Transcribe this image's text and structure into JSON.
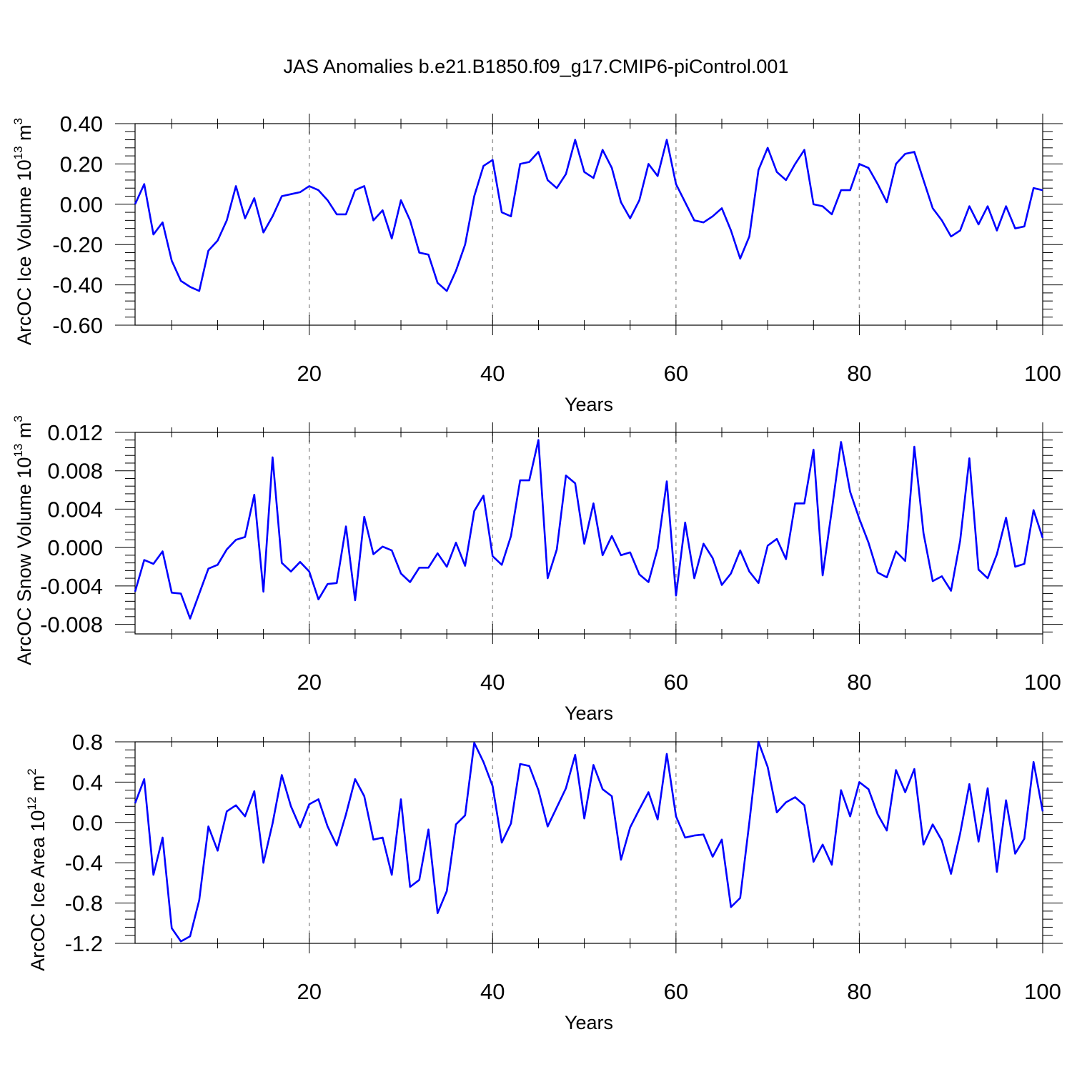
{
  "title": "JAS Anomalies b.e21.B1850.f09_g17.CMIP6-piControl.001",
  "line_color": "#0000ff",
  "chart_data": [
    {
      "type": "line",
      "ylabel": "ArcOC Ice Volume",
      "ylabel_unit": {
        "base": "10",
        "exp": "13",
        "unit": "m",
        "unit_exp": "3"
      },
      "xlabel": "Years",
      "xlim": [
        1,
        100
      ],
      "ylim": [
        -0.6,
        0.4
      ],
      "yticks": [
        -0.6,
        -0.4,
        -0.2,
        0.0,
        0.2,
        0.4
      ],
      "ytick_labels": [
        "-0.60",
        "-0.40",
        "-0.20",
        "0.00",
        "0.20",
        "0.40"
      ],
      "xticks": [
        20,
        40,
        60,
        80,
        100
      ],
      "xtick_labels": [
        "20",
        "40",
        "60",
        "80",
        "100"
      ],
      "x_start": 1,
      "values": [
        0.0,
        0.1,
        -0.15,
        -0.09,
        -0.28,
        -0.38,
        -0.41,
        -0.43,
        -0.23,
        -0.18,
        -0.08,
        0.09,
        -0.07,
        0.03,
        -0.14,
        -0.06,
        0.04,
        0.05,
        0.06,
        0.09,
        0.07,
        0.02,
        -0.05,
        -0.05,
        0.07,
        0.09,
        -0.08,
        -0.03,
        -0.17,
        0.02,
        -0.08,
        -0.24,
        -0.25,
        -0.39,
        -0.43,
        -0.33,
        -0.2,
        0.04,
        0.19,
        0.22,
        -0.04,
        -0.06,
        0.2,
        0.21,
        0.26,
        0.12,
        0.08,
        0.15,
        0.32,
        0.16,
        0.13,
        0.27,
        0.18,
        0.01,
        -0.07,
        0.02,
        0.2,
        0.14,
        0.32,
        0.1,
        0.01,
        -0.08,
        -0.09,
        -0.06,
        -0.02,
        -0.13,
        -0.27,
        -0.16,
        0.17,
        0.28,
        0.16,
        0.12,
        0.2,
        0.27,
        0.0,
        -0.01,
        -0.05,
        0.07,
        0.07,
        0.2,
        0.18,
        0.1,
        0.01,
        0.2,
        0.25,
        0.26,
        0.12,
        -0.02,
        -0.08,
        -0.16,
        -0.13,
        -0.01,
        -0.1,
        -0.01,
        -0.13,
        -0.01,
        -0.12,
        -0.11,
        0.08,
        0.07
      ]
    },
    {
      "type": "line",
      "ylabel": "ArcOC Snow Volume",
      "ylabel_unit": {
        "base": "10",
        "exp": "13",
        "unit": "m",
        "unit_exp": "3"
      },
      "xlabel": "Years",
      "xlim": [
        1,
        100
      ],
      "ylim": [
        -0.009,
        0.012
      ],
      "yticks": [
        -0.008,
        -0.004,
        0.0,
        0.004,
        0.008,
        0.012
      ],
      "ytick_labels": [
        "-0.008",
        "-0.004",
        "0.000",
        "0.004",
        "0.008",
        "0.012"
      ],
      "xticks": [
        20,
        40,
        60,
        80,
        100
      ],
      "xtick_labels": [
        "20",
        "40",
        "60",
        "80",
        "100"
      ],
      "x_start": 1,
      "values": [
        -0.0046,
        -0.0013,
        -0.0017,
        -0.0004,
        -0.0047,
        -0.0048,
        -0.0074,
        -0.0048,
        -0.0022,
        -0.0018,
        -0.0002,
        0.0008,
        0.0011,
        0.0055,
        -0.0046,
        0.0094,
        -0.0016,
        -0.0025,
        -0.0015,
        -0.0025,
        -0.0054,
        -0.0038,
        -0.0037,
        0.0022,
        -0.0055,
        0.0032,
        -0.0007,
        0.0001,
        -0.0003,
        -0.0027,
        -0.0036,
        -0.0021,
        -0.0021,
        -0.0006,
        -0.002,
        0.0005,
        -0.0019,
        0.0038,
        0.0054,
        -0.0009,
        -0.0018,
        0.0012,
        0.007,
        0.007,
        0.0112,
        -0.0032,
        -0.0002,
        0.0075,
        0.0067,
        0.0004,
        0.0046,
        -0.0008,
        0.0012,
        -0.0008,
        -0.0005,
        -0.0028,
        -0.0036,
        -0.0001,
        0.0069,
        -0.005,
        0.0026,
        -0.0032,
        0.0004,
        -0.0011,
        -0.0039,
        -0.0027,
        -0.0003,
        -0.0025,
        -0.0037,
        0.0002,
        0.0009,
        -0.0012,
        0.0046,
        0.0046,
        0.0102,
        -0.0029,
        0.0039,
        0.011,
        0.0058,
        0.003,
        0.0005,
        -0.0026,
        -0.0031,
        -0.0004,
        -0.0014,
        0.0105,
        0.0015,
        -0.0035,
        -0.003,
        -0.0045,
        0.0007,
        0.0093,
        -0.0023,
        -0.0032,
        -0.0007,
        0.0031,
        -0.002,
        -0.0017,
        0.0039,
        0.001
      ]
    },
    {
      "type": "line",
      "ylabel": "ArcOC Ice Area",
      "ylabel_unit": {
        "base": "10",
        "exp": "12",
        "unit": "m",
        "unit_exp": "2"
      },
      "xlabel": "Years",
      "xlim": [
        1,
        100
      ],
      "ylim": [
        -1.2,
        0.8
      ],
      "yticks": [
        -1.2,
        -0.8,
        -0.4,
        0.0,
        0.4,
        0.8
      ],
      "ytick_labels": [
        "-1.2",
        "-0.8",
        "-0.4",
        "0.0",
        "0.4",
        "0.8"
      ],
      "xticks": [
        20,
        40,
        60,
        80,
        100
      ],
      "xtick_labels": [
        "20",
        "40",
        "60",
        "80",
        "100"
      ],
      "x_start": 1,
      "values": [
        0.19,
        0.43,
        -0.52,
        -0.15,
        -1.05,
        -1.18,
        -1.13,
        -0.77,
        -0.04,
        -0.28,
        0.11,
        0.17,
        0.06,
        0.31,
        -0.4,
        -0.01,
        0.47,
        0.16,
        -0.05,
        0.18,
        0.23,
        -0.04,
        -0.23,
        0.08,
        0.43,
        0.26,
        -0.17,
        -0.15,
        -0.52,
        0.23,
        -0.64,
        -0.57,
        -0.07,
        -0.9,
        -0.68,
        -0.02,
        0.07,
        0.79,
        0.6,
        0.36,
        -0.2,
        -0.01,
        0.58,
        0.56,
        0.32,
        -0.04,
        0.15,
        0.34,
        0.67,
        0.04,
        0.57,
        0.33,
        0.26,
        -0.37,
        -0.05,
        0.13,
        0.3,
        0.03,
        0.68,
        0.06,
        -0.15,
        -0.13,
        -0.12,
        -0.34,
        -0.17,
        -0.84,
        -0.75,
        0.0,
        0.8,
        0.55,
        0.1,
        0.2,
        0.25,
        0.17,
        -0.39,
        -0.22,
        -0.42,
        0.32,
        0.06,
        0.4,
        0.33,
        0.08,
        -0.08,
        0.52,
        0.3,
        0.53,
        -0.22,
        -0.02,
        -0.18,
        -0.51,
        -0.11,
        0.38,
        -0.19,
        0.34,
        -0.49,
        0.22,
        -0.31,
        -0.16,
        0.6,
        0.11
      ]
    }
  ]
}
